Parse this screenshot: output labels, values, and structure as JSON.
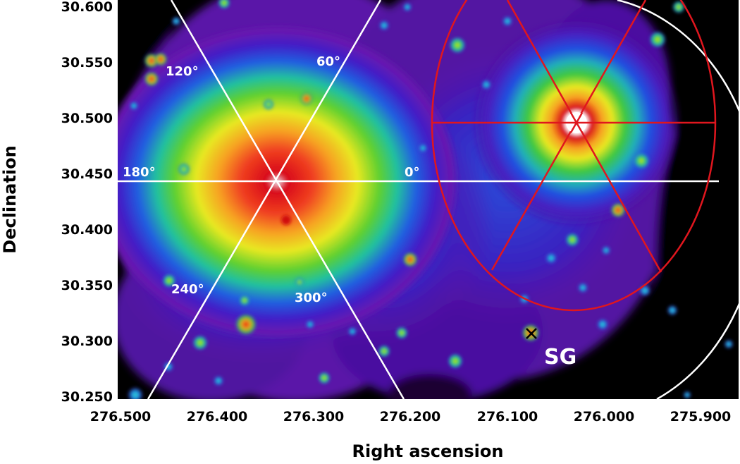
{
  "axes": {
    "x_title": "Right ascension",
    "y_title": "Declination",
    "x_ticks": [
      "276.500",
      "276.400",
      "276.300",
      "276.200",
      "276.100",
      "276.000",
      "275.900"
    ],
    "y_ticks": [
      "30.600",
      "30.550",
      "30.500",
      "30.450",
      "30.400",
      "30.350",
      "30.300",
      "30.250"
    ],
    "x_range": [
      276.5,
      275.9
    ],
    "y_range": [
      30.25,
      30.6
    ]
  },
  "sector_labels": {
    "a0": "0°",
    "a60": "60°",
    "a120": "120°",
    "a180": "180°",
    "a240": "240°",
    "a300": "300°"
  },
  "source_label": "SG",
  "colors": {
    "white_lines": "#ffffff",
    "red_lines": "#e0161e",
    "background": "#000000"
  }
}
